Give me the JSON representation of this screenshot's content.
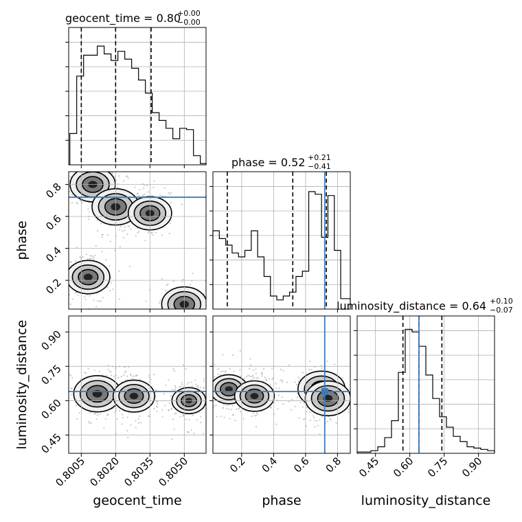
{
  "chart_data": {
    "type": "corner",
    "parameters": [
      "geocent_time",
      "phase",
      "luminosity_distance"
    ],
    "titles": [
      {
        "text": "geocent_time = 0.80",
        "plus": "+0.00",
        "minus": "−0.00"
      },
      {
        "text": "phase = 0.52",
        "plus": "+0.21",
        "minus": "−0.41"
      },
      {
        "text": "luminosity_distance = 0.64",
        "plus": "+0.10",
        "minus": "−0.07"
      }
    ],
    "ranges": {
      "geocent_time": [
        0.79995,
        0.80595
      ],
      "phase": [
        0.02,
        0.88
      ],
      "luminosity_distance": [
        0.37,
        0.97
      ]
    },
    "ticks": {
      "geocent_time": {
        "values": [
          0.8005,
          0.802,
          0.8035,
          0.805
        ],
        "labels": [
          "0.8005",
          "0.8020",
          "0.8035",
          "0.8050"
        ]
      },
      "phase": {
        "values": [
          0.2,
          0.4,
          0.6,
          0.8
        ],
        "labels": [
          "0.2",
          "0.4",
          "0.6",
          "0.8"
        ]
      },
      "luminosity_distance": {
        "values": [
          0.45,
          0.6,
          0.75,
          0.9
        ],
        "labels": [
          "0.45",
          "0.60",
          "0.75",
          "0.90"
        ]
      }
    },
    "truths": {
      "geocent_time": null,
      "phase": 0.72,
      "luminosity_distance": 0.64
    },
    "quantiles": {
      "geocent_time": [
        0.8005,
        0.802,
        0.80355
      ],
      "phase": [
        0.11,
        0.52,
        0.73
      ],
      "luminosity_distance": [
        0.57,
        0.64,
        0.74
      ]
    },
    "histograms": {
      "geocent_time": {
        "edges": [
          0.8,
          0.8003,
          0.8006,
          0.8009,
          0.8012,
          0.8015,
          0.8018,
          0.8021,
          0.8024,
          0.8027,
          0.803,
          0.8033,
          0.8036,
          0.8039,
          0.8042,
          0.8045,
          0.8048,
          0.8051,
          0.8054,
          0.8057,
          0.80595
        ],
        "counts": [
          0.24,
          0.68,
          0.84,
          0.84,
          0.91,
          0.85,
          0.8,
          0.87,
          0.81,
          0.74,
          0.65,
          0.55,
          0.4,
          0.34,
          0.28,
          0.2,
          0.28,
          0.27,
          0.07,
          0.01
        ]
      },
      "phase": {
        "edges": [
          0.02,
          0.06,
          0.1,
          0.14,
          0.18,
          0.22,
          0.26,
          0.3,
          0.34,
          0.38,
          0.42,
          0.46,
          0.5,
          0.54,
          0.58,
          0.62,
          0.66,
          0.7,
          0.74,
          0.78,
          0.82,
          0.88
        ],
        "counts": [
          0.6,
          0.54,
          0.49,
          0.43,
          0.4,
          0.45,
          0.6,
          0.4,
          0.25,
          0.1,
          0.07,
          0.1,
          0.13,
          0.25,
          0.29,
          0.9,
          0.88,
          0.55,
          0.87,
          0.45,
          0.08
        ]
      },
      "luminosity_distance": {
        "edges": [
          0.37,
          0.4,
          0.43,
          0.46,
          0.49,
          0.52,
          0.55,
          0.58,
          0.61,
          0.64,
          0.67,
          0.7,
          0.73,
          0.76,
          0.79,
          0.82,
          0.85,
          0.88,
          0.91,
          0.94,
          0.97
        ],
        "counts": [
          0.01,
          0.01,
          0.02,
          0.05,
          0.12,
          0.25,
          0.62,
          0.95,
          0.93,
          0.82,
          0.6,
          0.42,
          0.28,
          0.2,
          0.13,
          0.09,
          0.05,
          0.04,
          0.03,
          0.02
        ]
      }
    },
    "density_2d": {
      "phase_vs_geocent_time": {
        "modes": [
          {
            "x": 0.801,
            "y": 0.8,
            "level": 0.9
          },
          {
            "x": 0.802,
            "y": 0.66,
            "level": 1.0
          },
          {
            "x": 0.8035,
            "y": 0.62,
            "level": 0.8
          },
          {
            "x": 0.8008,
            "y": 0.22,
            "level": 0.8
          },
          {
            "x": 0.805,
            "y": 0.05,
            "level": 0.9
          }
        ]
      },
      "luminosity_distance_vs_geocent_time": {
        "modes": [
          {
            "x": 0.8012,
            "y": 0.63,
            "level": 1.0
          },
          {
            "x": 0.8028,
            "y": 0.62,
            "level": 0.7
          },
          {
            "x": 0.8052,
            "y": 0.6,
            "level": 0.3
          }
        ]
      },
      "luminosity_distance_vs_phase": {
        "modes": [
          {
            "x": 0.12,
            "y": 0.65,
            "level": 0.5
          },
          {
            "x": 0.28,
            "y": 0.62,
            "level": 0.6
          },
          {
            "x": 0.7,
            "y": 0.65,
            "level": 1.0
          },
          {
            "x": 0.74,
            "y": 0.61,
            "level": 0.9
          }
        ]
      }
    },
    "colors": {
      "truth": "#3d7ab8",
      "line": "#000000",
      "grid": "#b0b0b0"
    },
    "grid": true,
    "xlabel": [
      "geocent_time",
      "phase",
      "luminosity_distance"
    ],
    "ylabel": [
      "phase",
      "luminosity_distance"
    ]
  }
}
